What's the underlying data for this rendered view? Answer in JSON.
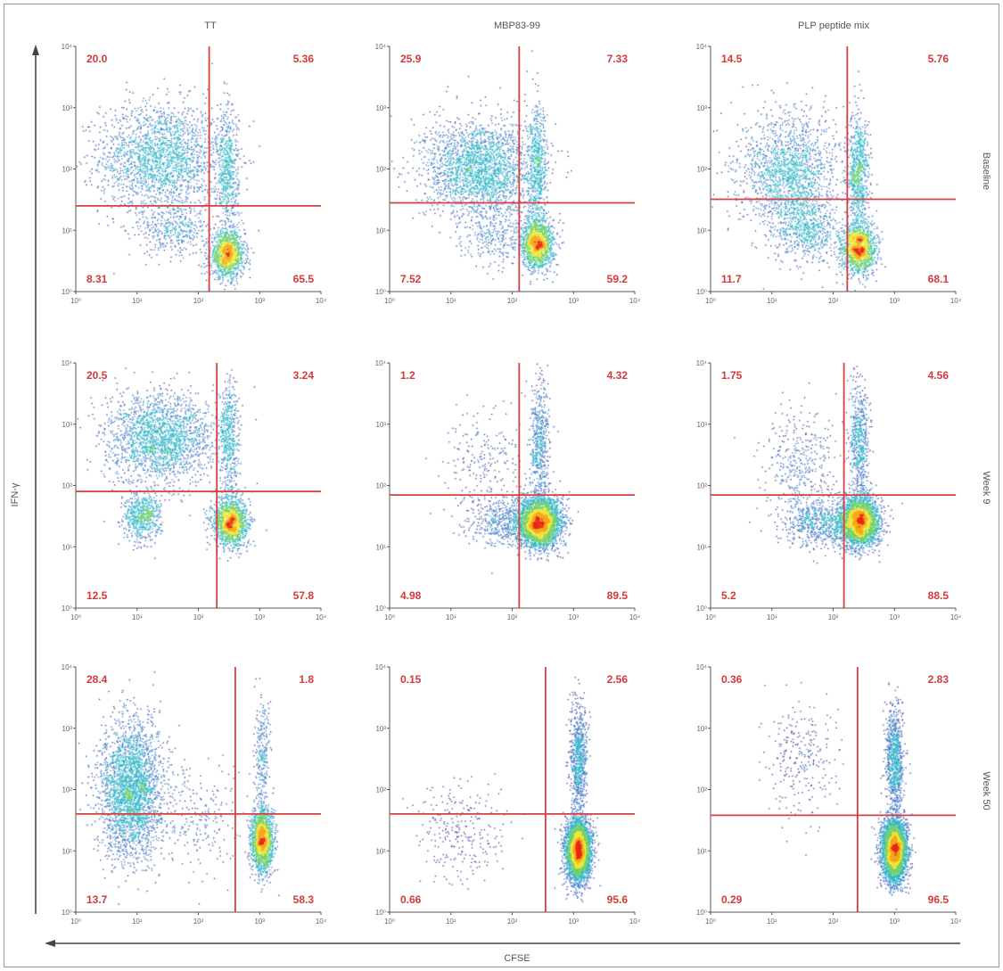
{
  "chart_data": {
    "type": "scatter",
    "layout": "3x3 grid of flow cytometry dot plots",
    "columns": [
      "TT",
      "MBP83-99",
      "PLP peptide mix"
    ],
    "rows": [
      "Baseline",
      "Week 9",
      "Week 50"
    ],
    "xlabel": "CFSE",
    "ylabel": "IFN-γ",
    "xscale": "log",
    "yscale": "log",
    "xlim": [
      1,
      10000
    ],
    "ylim": [
      1,
      10000
    ],
    "tick_labels": [
      "10⁰",
      "10¹",
      "10²",
      "10³",
      "10⁴"
    ],
    "quadrant_order": [
      "upper-left",
      "upper-right",
      "lower-left",
      "lower-right"
    ],
    "panels": [
      {
        "row": "Baseline",
        "column": "TT",
        "quadrants": [
          "20.0",
          "5.36",
          "8.31",
          "65.5"
        ],
        "gate_x": 150,
        "gate_y": 25,
        "clusters": [
          [
            25,
            150,
            0.5,
            0.45,
            0.4
          ],
          [
            300,
            4,
            0.14,
            0.18,
            0.25
          ],
          [
            300,
            80,
            0.09,
            0.55,
            0.12
          ],
          [
            40,
            10,
            0.28,
            0.2,
            0.07
          ]
        ]
      },
      {
        "row": "Baseline",
        "column": "MBP83-99",
        "quadrants": [
          "25.9",
          "7.33",
          "7.52",
          "59.2"
        ],
        "gate_x": 130,
        "gate_y": 28,
        "clusters": [
          [
            30,
            100,
            0.45,
            0.4,
            0.45
          ],
          [
            260,
            6,
            0.13,
            0.2,
            0.28
          ],
          [
            260,
            100,
            0.08,
            0.5,
            0.12
          ],
          [
            60,
            8,
            0.3,
            0.25,
            0.06
          ]
        ]
      },
      {
        "row": "Baseline",
        "column": "PLP peptide mix",
        "quadrants": [
          "14.5",
          "5.76",
          "11.7",
          "68.1"
        ],
        "gate_x": 170,
        "gate_y": 32,
        "clusters": [
          [
            20,
            80,
            0.4,
            0.5,
            0.35
          ],
          [
            260,
            5,
            0.14,
            0.2,
            0.3
          ],
          [
            260,
            80,
            0.09,
            0.5,
            0.15
          ],
          [
            40,
            10,
            0.25,
            0.25,
            0.1
          ]
        ]
      },
      {
        "row": "Week 9",
        "column": "TT",
        "quadrants": [
          "20.5",
          "3.24",
          "12.5",
          "57.8"
        ],
        "gate_x": 200,
        "gate_y": 80,
        "clusters": [
          [
            25,
            600,
            0.45,
            0.35,
            0.4
          ],
          [
            330,
            25,
            0.14,
            0.2,
            0.3
          ],
          [
            320,
            500,
            0.08,
            0.5,
            0.1
          ],
          [
            12,
            30,
            0.15,
            0.2,
            0.12
          ]
        ]
      },
      {
        "row": "Week 9",
        "column": "MBP83-99",
        "quadrants": [
          "1.2",
          "4.32",
          "4.98",
          "89.5"
        ],
        "gate_x": 130,
        "gate_y": 70,
        "clusters": [
          [
            280,
            25,
            0.17,
            0.2,
            0.7
          ],
          [
            280,
            500,
            0.08,
            0.5,
            0.1
          ],
          [
            40,
            200,
            0.35,
            0.5,
            0.05
          ],
          [
            80,
            25,
            0.3,
            0.2,
            0.1
          ]
        ]
      },
      {
        "row": "Week 9",
        "column": "PLP peptide mix",
        "quadrants": [
          "1.75",
          "4.56",
          "5.2",
          "88.5"
        ],
        "gate_x": 150,
        "gate_y": 70,
        "clusters": [
          [
            270,
            25,
            0.16,
            0.2,
            0.6
          ],
          [
            270,
            500,
            0.08,
            0.5,
            0.12
          ],
          [
            30,
            200,
            0.3,
            0.5,
            0.08
          ],
          [
            60,
            25,
            0.3,
            0.2,
            0.12
          ]
        ]
      },
      {
        "row": "Week 50",
        "column": "TT",
        "quadrants": [
          "28.4",
          "1.8",
          "13.7",
          "58.3"
        ],
        "gate_x": 400,
        "gate_y": 40,
        "clusters": [
          [
            8,
            100,
            0.25,
            0.55,
            0.55
          ],
          [
            1100,
            15,
            0.09,
            0.25,
            0.35
          ],
          [
            1100,
            400,
            0.06,
            0.4,
            0.05
          ],
          [
            100,
            30,
            0.4,
            0.4,
            0.05
          ]
        ]
      },
      {
        "row": "Week 50",
        "column": "MBP83-99",
        "quadrants": [
          "0.15",
          "2.56",
          "0.66",
          "95.6"
        ],
        "gate_x": 350,
        "gate_y": 40,
        "clusters": [
          [
            1200,
            10,
            0.1,
            0.25,
            0.8
          ],
          [
            1200,
            300,
            0.07,
            0.45,
            0.15
          ],
          [
            15,
            20,
            0.35,
            0.4,
            0.05
          ]
        ]
      },
      {
        "row": "Week 50",
        "column": "PLP peptide mix",
        "quadrants": [
          "0.36",
          "2.83",
          "0.29",
          "96.5"
        ],
        "gate_x": 250,
        "gate_y": 38,
        "clusters": [
          [
            1000,
            10,
            0.1,
            0.25,
            0.78
          ],
          [
            1000,
            300,
            0.07,
            0.45,
            0.17
          ],
          [
            30,
            300,
            0.3,
            0.5,
            0.05
          ]
        ]
      }
    ]
  }
}
